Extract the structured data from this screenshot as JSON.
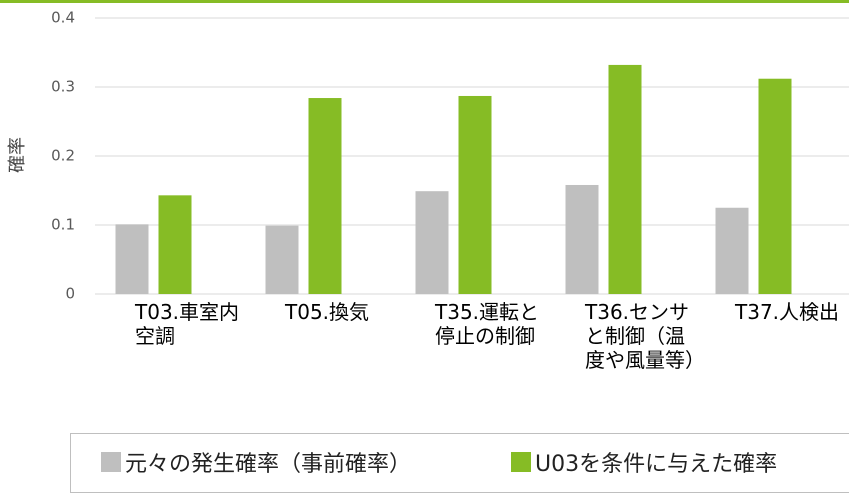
{
  "chart_data": {
    "type": "bar",
    "y_label": "確率",
    "categories": [
      "T03.車室内空調",
      "T05.換気",
      "T35.運転と停止の制御",
      "T36.センサと制御（温度や風量等）",
      "T37.人検出"
    ],
    "series": [
      {
        "name": "元々の発生確率（事前確率）",
        "color": "#bfbfbf",
        "values": [
          0.101,
          0.099,
          0.149,
          0.158,
          0.125
        ]
      },
      {
        "name": "U03を条件に与えた確率",
        "color": "#86bc25",
        "values": [
          0.143,
          0.284,
          0.287,
          0.332,
          0.312
        ]
      }
    ],
    "ylim": [
      0,
      0.4
    ],
    "yticks": [
      0,
      0.1,
      0.2,
      0.3,
      0.4
    ],
    "grid": true
  }
}
